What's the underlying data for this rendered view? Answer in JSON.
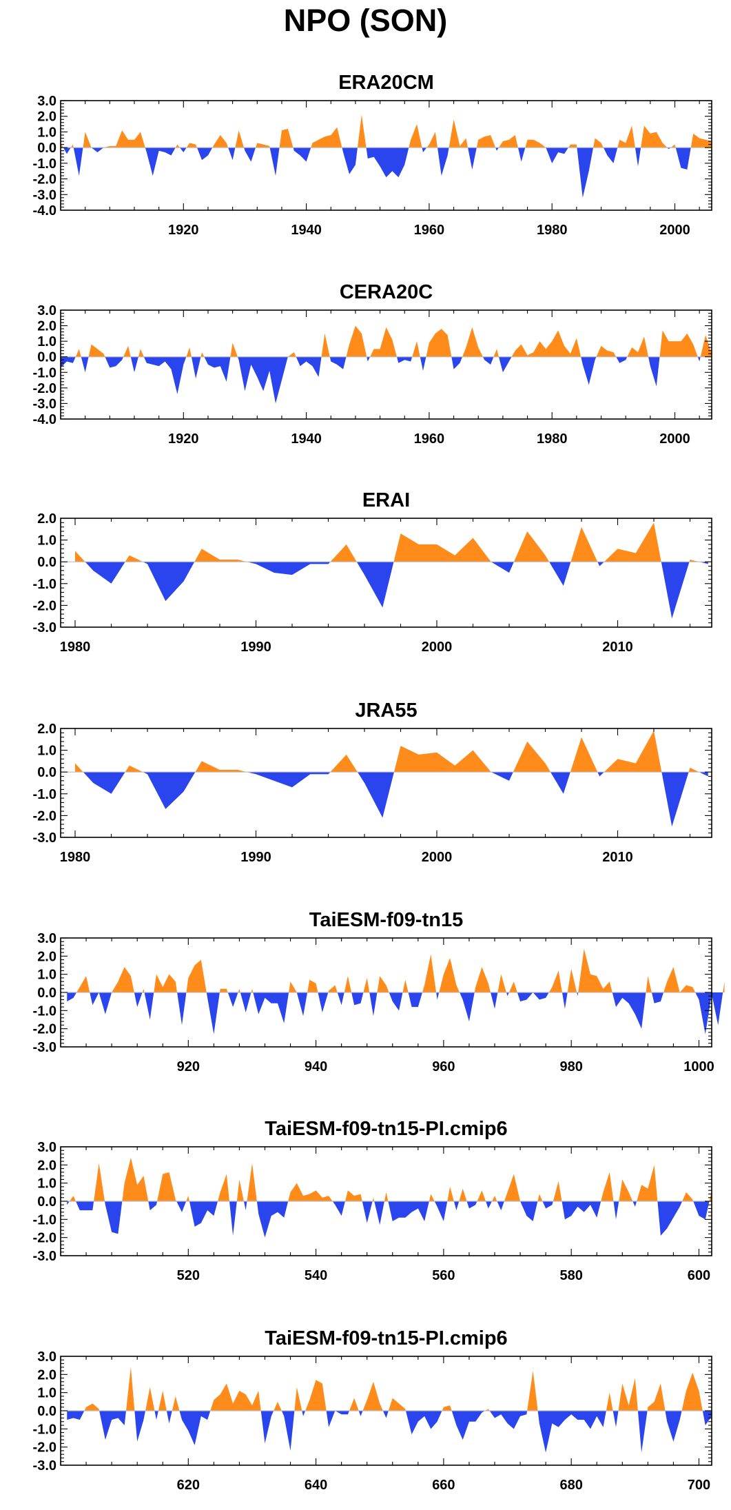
{
  "title": "NPO (SON)",
  "colors": {
    "positive": "#FF8C1A",
    "negative": "#2B45EE",
    "axis": "#000000",
    "zero_line": "#BBBBBB"
  },
  "chart_data": [
    {
      "type": "area",
      "title": "ERA20CM",
      "xlabel": "",
      "ylabel": "",
      "xlim": [
        1900,
        2006
      ],
      "ylim": [
        -4,
        3
      ],
      "xticks": [
        1920,
        1940,
        1960,
        1980,
        2000
      ],
      "yticks": [
        3.0,
        2.0,
        1.0,
        0.0,
        -1.0,
        -2.0,
        -3.0,
        -4.0
      ],
      "x_start": 1900,
      "values": [
        0.3,
        -0.4,
        0.2,
        -1.8,
        1.0,
        0.0,
        -0.3,
        0.0,
        0.1,
        0.1,
        1.1,
        0.5,
        0.5,
        1.0,
        -0.3,
        -1.8,
        -0.2,
        -0.3,
        -0.5,
        0.2,
        -0.3,
        0.3,
        0.2,
        -0.8,
        -0.5,
        0.2,
        0.8,
        0.3,
        -0.8,
        1.1,
        -0.2,
        -0.9,
        0.3,
        0.2,
        0.1,
        -1.8,
        1.1,
        1.2,
        -0.2,
        -0.5,
        -0.9,
        0.3,
        0.5,
        0.7,
        0.8,
        1.3,
        -0.3,
        -1.7,
        -1.1,
        2.1,
        -0.7,
        -0.6,
        -1.2,
        -1.9,
        -1.5,
        -1.9,
        -1.1,
        0.5,
        1.5,
        -0.3,
        0.2,
        1.0,
        -1.8,
        -0.5,
        1.8,
        0.1,
        0.6,
        -1.4,
        0.5,
        0.7,
        0.8,
        -0.2,
        0.4,
        0.5,
        0.8,
        -0.9,
        0.5,
        0.5,
        0.3,
        0.0,
        -1.0,
        -0.3,
        -0.4,
        0.2,
        0.2,
        -3.2,
        -1.5,
        0.6,
        0.3,
        -0.5,
        -1.0,
        0.5,
        0.3,
        1.4,
        -1.2,
        1.4,
        0.9,
        1.0,
        0.3,
        -0.1,
        0.2,
        -1.3,
        -1.4,
        0.9,
        0.6,
        0.5,
        0.4
      ],
      "series_colors": {
        "above_zero": "#FF8C1A",
        "below_zero": "#2B45EE"
      }
    },
    {
      "type": "area",
      "title": "CERA20C",
      "xlabel": "",
      "ylabel": "",
      "xlim": [
        1900,
        2006
      ],
      "ylim": [
        -4,
        3
      ],
      "xticks": [
        1920,
        1940,
        1960,
        1980,
        2000
      ],
      "yticks": [
        3.0,
        2.0,
        1.0,
        0.0,
        -1.0,
        -2.0,
        -3.0,
        -4.0
      ],
      "x_start": 1900,
      "values": [
        -0.7,
        -0.3,
        -0.4,
        0.5,
        -1.0,
        0.8,
        0.5,
        0.2,
        -0.7,
        -0.6,
        -0.2,
        0.7,
        -1.0,
        0.5,
        -0.4,
        -0.5,
        -0.6,
        -0.3,
        -0.8,
        -2.4,
        -0.5,
        0.6,
        -1.4,
        0.3,
        -0.5,
        -0.7,
        -0.6,
        -1.6,
        0.9,
        -0.2,
        -2.2,
        -0.5,
        -1.3,
        -2.2,
        -0.9,
        -3.0,
        -1.5,
        0.0,
        0.3,
        -0.6,
        -0.3,
        -0.6,
        -1.3,
        1.5,
        -0.3,
        -0.5,
        -0.8,
        0.8,
        2.0,
        1.5,
        -0.3,
        0.5,
        0.5,
        1.9,
        1.1,
        -0.4,
        -0.2,
        -0.3,
        1.0,
        -0.9,
        0.9,
        1.5,
        1.8,
        1.4,
        -0.8,
        -0.4,
        0.6,
        1.9,
        0.6,
        -0.2,
        -0.5,
        0.5,
        -1.0,
        -0.3,
        0.4,
        0.8,
        0.1,
        0.3,
        1.0,
        0.5,
        1.0,
        1.7,
        0.7,
        0.2,
        1.2,
        -0.5,
        -1.8,
        -0.2,
        0.7,
        0.4,
        0.3,
        -0.4,
        -0.2,
        0.6,
        0.3,
        1.3,
        -0.6,
        -1.9,
        1.7,
        1.0,
        1.0,
        1.0,
        1.5,
        0.8,
        -0.3,
        1.4,
        0.2
      ],
      "series_colors": {
        "above_zero": "#FF8C1A",
        "below_zero": "#2B45EE"
      }
    },
    {
      "type": "area",
      "title": "ERAI",
      "xlabel": "",
      "ylabel": "",
      "xlim": [
        1979.2,
        2015.2
      ],
      "ylim": [
        -3,
        2
      ],
      "xticks": [
        1980,
        1990,
        2000,
        2010
      ],
      "yticks": [
        2.0,
        1.0,
        0.0,
        -1.0,
        -2.0,
        -3.0
      ],
      "x_start": 1980,
      "values": [
        0.5,
        -0.4,
        -1.0,
        0.3,
        -0.1,
        -1.8,
        -0.9,
        0.6,
        0.1,
        0.1,
        -0.1,
        -0.5,
        -0.6,
        -0.1,
        -0.1,
        0.8,
        -0.6,
        -2.1,
        1.3,
        0.8,
        0.8,
        0.3,
        1.1,
        0.0,
        -0.5,
        1.4,
        0.3,
        -1.1,
        1.6,
        -0.2,
        0.6,
        0.4,
        1.8,
        -2.6,
        0.1,
        -0.1
      ],
      "series_colors": {
        "above_zero": "#FF8C1A",
        "below_zero": "#2B45EE"
      }
    },
    {
      "type": "area",
      "title": "JRA55",
      "xlabel": "",
      "ylabel": "",
      "xlim": [
        1979.2,
        2015.2
      ],
      "ylim": [
        -3,
        2
      ],
      "xticks": [
        1980,
        1990,
        2000,
        2010
      ],
      "yticks": [
        2.0,
        1.0,
        0.0,
        -1.0,
        -2.0,
        -3.0
      ],
      "x_start": 1980,
      "values": [
        0.4,
        -0.5,
        -1.0,
        0.3,
        -0.1,
        -1.7,
        -0.9,
        0.5,
        0.1,
        0.1,
        -0.1,
        -0.4,
        -0.7,
        -0.1,
        -0.1,
        0.8,
        -0.5,
        -2.1,
        1.2,
        0.8,
        0.9,
        0.3,
        1.0,
        0.0,
        -0.4,
        1.4,
        0.4,
        -1.0,
        1.6,
        -0.2,
        0.6,
        0.4,
        1.9,
        -2.5,
        0.2,
        -0.2
      ],
      "series_colors": {
        "above_zero": "#FF8C1A",
        "below_zero": "#2B45EE"
      }
    },
    {
      "type": "area",
      "title": "TaiESM-f09-tn15",
      "xlabel": "",
      "ylabel": "",
      "xlim": [
        900,
        1002
      ],
      "ylim": [
        -3,
        3
      ],
      "xticks": [
        920,
        940,
        960,
        980,
        1000
      ],
      "xticklabels": [
        "920",
        "940",
        "960",
        "980",
        "1000"
      ],
      "yticks": [
        3.0,
        2.0,
        1.0,
        0.0,
        -1.0,
        -2.0,
        -3.0
      ],
      "x_start": 901,
      "values": [
        -0.5,
        -0.3,
        0.3,
        0.9,
        -0.7,
        0.0,
        -1.2,
        0.0,
        0.6,
        1.4,
        0.9,
        -0.8,
        0.2,
        -1.5,
        1.0,
        0.3,
        1.0,
        0.6,
        -1.8,
        0.8,
        1.5,
        1.8,
        -0.3,
        -2.3,
        0.2,
        0.2,
        -0.8,
        0.2,
        -1.1,
        0.2,
        -1.2,
        -0.3,
        -0.6,
        -0.6,
        -1.7,
        0.6,
        0.0,
        -1.3,
        0.7,
        0.5,
        -1.1,
        0.1,
        0.4,
        -0.7,
        0.9,
        -0.7,
        -0.6,
        0.8,
        -1.3,
        0.9,
        0.4,
        -0.5,
        -1.0,
        0.7,
        -0.8,
        -0.8,
        0.4,
        2.1,
        -0.4,
        1.0,
        1.9,
        0.4,
        -0.4,
        -1.6,
        0.3,
        1.4,
        0.5,
        -0.9,
        1.0,
        -0.2,
        0.6,
        -0.5,
        -0.4,
        0.0,
        -0.4,
        -0.3,
        0.3,
        1.2,
        -0.9,
        1.3,
        -0.2,
        2.4,
        1.0,
        0.9,
        0.2,
        0.6,
        -0.8,
        -0.3,
        -0.6,
        -1.2,
        -2.0,
        0.9,
        -0.6,
        -0.5,
        0.6,
        1.4,
        0.0,
        0.4,
        0.3,
        -0.4,
        -2.3,
        -0.1,
        -1.8,
        0.6
      ],
      "series_colors": {
        "above_zero": "#FF8C1A",
        "below_zero": "#2B45EE"
      }
    },
    {
      "type": "area",
      "title": "TaiESM-f09-tn15-PI.cmip6",
      "xlabel": "",
      "ylabel": "",
      "xlim": [
        500,
        602
      ],
      "ylim": [
        -3,
        3
      ],
      "xticks": [
        520,
        540,
        560,
        580,
        600
      ],
      "yticks": [
        3.0,
        2.0,
        1.0,
        0.0,
        -1.0,
        -2.0,
        -3.0
      ],
      "x_start": 501,
      "values": [
        -0.2,
        0.3,
        -0.5,
        -0.5,
        -0.5,
        2.1,
        -0.2,
        -1.7,
        -1.8,
        1.0,
        2.4,
        0.9,
        1.4,
        -0.5,
        -0.2,
        1.5,
        1.6,
        0.1,
        -0.6,
        0.3,
        -1.4,
        -1.2,
        -0.5,
        -0.8,
        0.5,
        1.5,
        -1.9,
        1.2,
        -0.5,
        2.1,
        -0.7,
        -2.0,
        -0.8,
        -0.6,
        -0.9,
        0.5,
        1.0,
        0.3,
        0.4,
        0.6,
        0.2,
        0.3,
        -0.2,
        -0.8,
        0.6,
        0.3,
        0.4,
        -1.2,
        0.2,
        -1.3,
        0.5,
        -1.1,
        -0.9,
        -0.9,
        -0.6,
        -0.4,
        -1.1,
        0.4,
        -0.3,
        -1.1,
        0.8,
        -0.5,
        0.7,
        -0.4,
        -0.2,
        0.6,
        -0.4,
        0.3,
        -0.5,
        0.5,
        1.5,
        0.0,
        -0.8,
        -1.1,
        0.4,
        -0.4,
        -0.2,
        1.1,
        -1.0,
        -0.8,
        -0.3,
        -0.6,
        -0.2,
        -0.9,
        0.5,
        1.6,
        -1.0,
        1.2,
        0.5,
        -0.3,
        0.9,
        0.7,
        2.0,
        -1.9,
        -1.5,
        -0.9,
        -0.3,
        0.5,
        0.1,
        -0.8,
        -1.0,
        0.6
      ],
      "series_colors": {
        "above_zero": "#FF8C1A",
        "below_zero": "#2B45EE"
      }
    },
    {
      "type": "area",
      "title": "TaiESM-f09-tn15-PI.cmip6",
      "xlabel": "",
      "ylabel": "",
      "xlim": [
        600,
        702
      ],
      "ylim": [
        -3,
        3
      ],
      "xticks": [
        620,
        640,
        660,
        680,
        700
      ],
      "yticks": [
        3.0,
        2.0,
        1.0,
        0.0,
        -1.0,
        -2.0,
        -3.0
      ],
      "x_start": 601,
      "values": [
        -0.5,
        -0.4,
        -0.5,
        0.2,
        0.4,
        0.1,
        -1.6,
        -0.5,
        -0.4,
        -0.8,
        2.4,
        -1.7,
        -0.5,
        1.3,
        -0.5,
        1.1,
        -0.7,
        0.8,
        -0.5,
        -1.1,
        -1.9,
        -0.3,
        -0.5,
        0.6,
        0.9,
        1.5,
        0.4,
        1.1,
        0.9,
        0.3,
        1.1,
        -1.8,
        -0.3,
        0.5,
        -0.3,
        -2.2,
        1.3,
        -0.3,
        0.6,
        1.7,
        1.5,
        -0.9,
        0.0,
        -0.2,
        -0.2,
        0.7,
        -0.3,
        0.6,
        1.6,
        0.4,
        -0.4,
        0.7,
        0.4,
        0.1,
        -1.3,
        -0.6,
        -0.3,
        -1.0,
        -0.6,
        0.2,
        0.3,
        -0.8,
        -1.6,
        -0.6,
        -0.6,
        -0.1,
        0.1,
        -0.4,
        -0.2,
        -0.7,
        -1.0,
        -0.3,
        -0.2,
        2.2,
        -0.7,
        -2.3,
        -0.7,
        -0.9,
        -0.5,
        -0.2,
        -0.5,
        -0.5,
        -1.0,
        -0.3,
        -0.9,
        1.0,
        -0.9,
        1.5,
        0.3,
        1.8,
        -2.3,
        0.2,
        0.5,
        1.5,
        -0.6,
        -1.7,
        -0.5,
        1.1,
        2.1,
        1.1,
        -0.8,
        -0.3
      ],
      "series_colors": {
        "above_zero": "#FF8C1A",
        "below_zero": "#2B45EE"
      }
    }
  ]
}
